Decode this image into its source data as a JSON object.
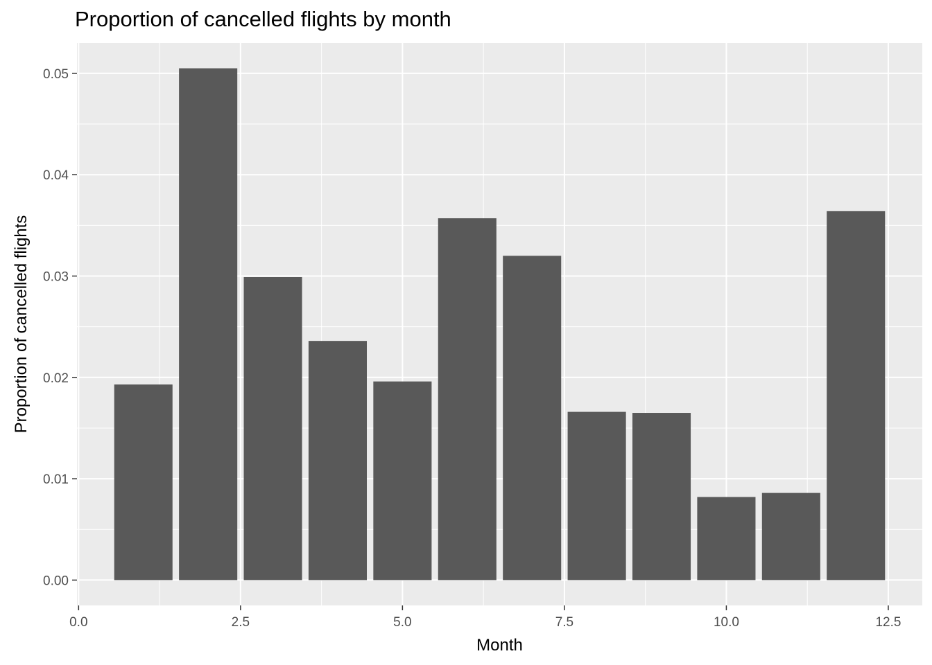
{
  "chart_data": {
    "type": "bar",
    "title": "Proportion of cancelled flights by month",
    "xlabel": "Month",
    "ylabel": "Proportion of cancelled flights",
    "x": [
      1,
      2,
      3,
      4,
      5,
      6,
      7,
      8,
      9,
      10,
      11,
      12
    ],
    "values": [
      0.0193,
      0.0505,
      0.0299,
      0.0236,
      0.0196,
      0.0357,
      0.032,
      0.0166,
      0.0165,
      0.0082,
      0.0086,
      0.0364
    ],
    "bar_width": 0.9,
    "xlim": [
      -0.025,
      13.025
    ],
    "ylim": [
      -0.0025,
      0.053
    ],
    "xticks": [
      0.0,
      2.5,
      5.0,
      7.5,
      10.0,
      12.5
    ],
    "xtick_labels": [
      "0.0",
      "2.5",
      "5.0",
      "7.5",
      "10.0",
      "12.5"
    ],
    "yticks": [
      0.0,
      0.01,
      0.02,
      0.03,
      0.04,
      0.05
    ],
    "ytick_labels": [
      "0.00",
      "0.01",
      "0.02",
      "0.03",
      "0.04",
      "0.05"
    ],
    "grid": true,
    "legend": "none",
    "colors": {
      "bar": "#595959",
      "panel": "#ebebeb",
      "grid": "#ffffff",
      "tick_text": "#4d4d4d",
      "tick_mark": "#333333"
    }
  }
}
